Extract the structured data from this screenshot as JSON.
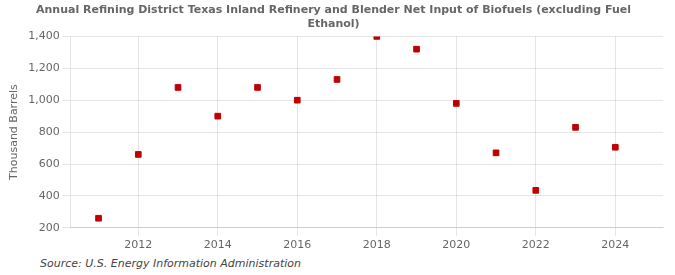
{
  "chart_data": {
    "type": "scatter",
    "title": "Annual Refining District Texas Inland Refinery and Blender Net Input of Biofuels (excluding Fuel\nEthanol)",
    "ylabel": "Thousand Barrels",
    "source": "Source: U.S. Energy Information Administration",
    "x": [
      2011,
      2012,
      2013,
      2014,
      2015,
      2016,
      2017,
      2018,
      2019,
      2020,
      2021,
      2022,
      2023,
      2024
    ],
    "values": [
      260,
      660,
      1080,
      900,
      1080,
      1000,
      1130,
      1400,
      1320,
      980,
      670,
      435,
      830,
      705
    ],
    "color": "#c00000",
    "marker": "square",
    "xlim": [
      2010.3,
      2025.2
    ],
    "xticks": [
      2012,
      2014,
      2016,
      2018,
      2020,
      2022,
      2024
    ],
    "ylim": [
      200,
      1400
    ],
    "yticks": [
      200,
      400,
      600,
      {
        "value": 1000,
        "label": "1,000"
      },
      800,
      {
        "value": 1200,
        "label": "1,200"
      },
      {
        "value": 1400,
        "label": "1,400"
      }
    ],
    "grid": true
  }
}
